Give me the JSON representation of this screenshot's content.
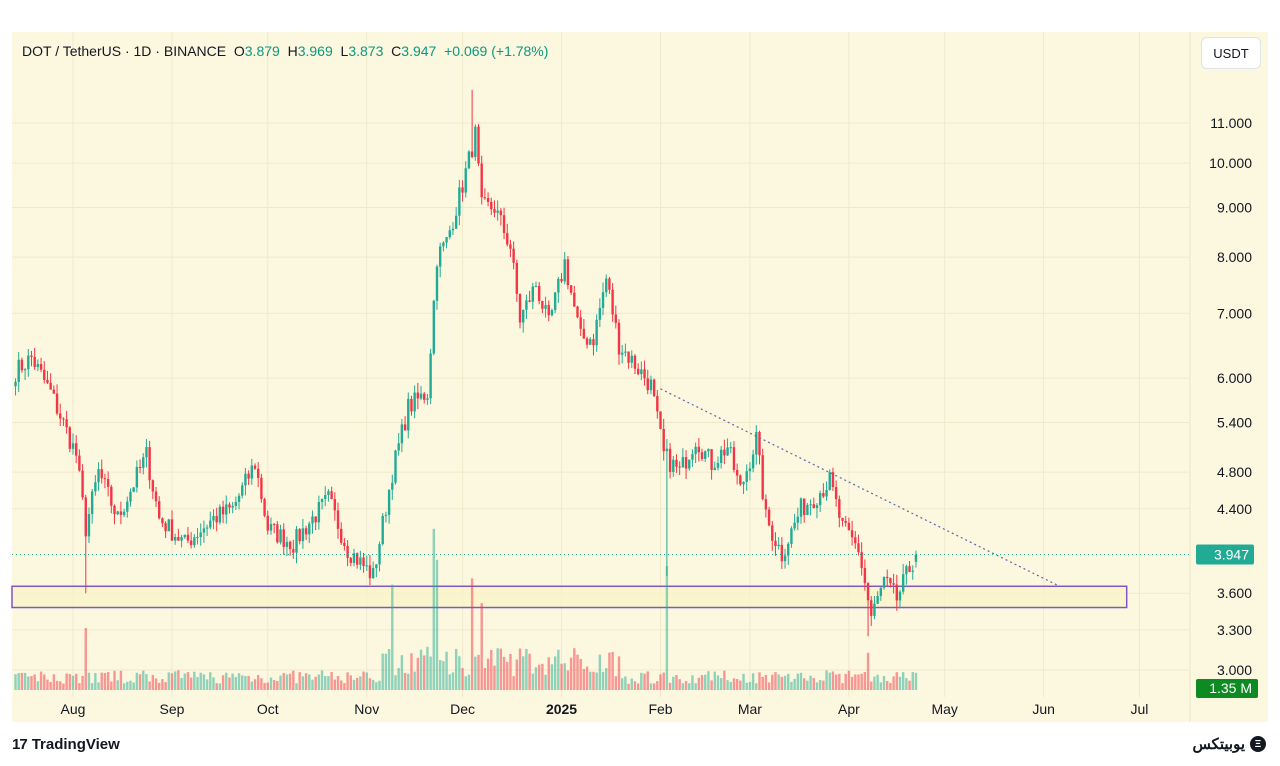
{
  "header": {
    "symbol": "DOT / TetherUS · 1D · BINANCE",
    "o_label": "O",
    "o": "3.879",
    "h_label": "H",
    "h": "3.969",
    "l_label": "L",
    "l": "3.873",
    "c_label": "C",
    "c": "3.947",
    "change": "+0.069 (+1.78%)"
  },
  "currency_button": "USDT",
  "footer": {
    "logo": "TradingView",
    "brand": "یوبیتکس"
  },
  "colors": {
    "up": "#22ab94",
    "down": "#f23645",
    "background": "#fcf7df",
    "zone": "#7e57c2",
    "price_tag": "#22ab94",
    "volume_tag": "#0d8a21"
  },
  "chart_data": {
    "type": "candlestick",
    "title": "DOT / TetherUS · 1D · BINANCE",
    "y_scale": "log",
    "ylim": [
      2.85,
      12.5
    ],
    "y_ticks": [
      "11.000",
      "10.000",
      "9.000",
      "8.000",
      "7.000",
      "6.000",
      "5.400",
      "4.800",
      "4.400",
      "3.600",
      "3.300",
      "3.000"
    ],
    "x_ticks": [
      {
        "date": "2024-08-01",
        "label": "Aug"
      },
      {
        "date": "2024-09-01",
        "label": "Sep"
      },
      {
        "date": "2024-10-01",
        "label": "Oct"
      },
      {
        "date": "2024-11-01",
        "label": "Nov"
      },
      {
        "date": "2024-12-01",
        "label": "Dec"
      },
      {
        "date": "2025-01-01",
        "label": "2025"
      },
      {
        "date": "2025-02-01",
        "label": "Feb"
      },
      {
        "date": "2025-03-01",
        "label": "Mar"
      },
      {
        "date": "2025-04-01",
        "label": "Apr"
      },
      {
        "date": "2025-05-01",
        "label": "May"
      },
      {
        "date": "2025-06-01",
        "label": "Jun"
      },
      {
        "date": "2025-07-01",
        "label": "Jul"
      }
    ],
    "close_keypoints": [
      [
        "2024-07-14",
        6.1
      ],
      [
        "2024-07-19",
        6.3
      ],
      [
        "2024-07-25",
        5.8
      ],
      [
        "2024-08-02",
        5.0
      ],
      [
        "2024-08-05",
        4.2
      ],
      [
        "2024-08-09",
        4.8
      ],
      [
        "2024-08-15",
        4.3
      ],
      [
        "2024-08-24",
        5.0
      ],
      [
        "2024-08-28",
        4.3
      ],
      [
        "2024-09-05",
        4.05
      ],
      [
        "2024-09-14",
        4.3
      ],
      [
        "2024-09-20",
        4.4
      ],
      [
        "2024-09-27",
        4.9
      ],
      [
        "2024-10-01",
        4.2
      ],
      [
        "2024-10-09",
        4.05
      ],
      [
        "2024-10-15",
        4.3
      ],
      [
        "2024-10-20",
        4.5
      ],
      [
        "2024-10-26",
        4.0
      ],
      [
        "2024-11-03",
        3.75
      ],
      [
        "2024-11-09",
        4.8
      ],
      [
        "2024-11-14",
        5.6
      ],
      [
        "2024-11-20",
        5.8
      ],
      [
        "2024-11-23",
        8.0
      ],
      [
        "2024-11-26",
        8.3
      ],
      [
        "2024-12-01",
        9.5
      ],
      [
        "2024-12-05",
        10.7
      ],
      [
        "2024-12-07",
        9.0
      ],
      [
        "2024-12-11",
        9.0
      ],
      [
        "2024-12-16",
        8.2
      ],
      [
        "2024-12-19",
        6.9
      ],
      [
        "2024-12-24",
        7.5
      ],
      [
        "2024-12-28",
        6.8
      ],
      [
        "2025-01-02",
        7.9
      ],
      [
        "2025-01-07",
        6.6
      ],
      [
        "2025-01-11",
        6.6
      ],
      [
        "2025-01-15",
        7.6
      ],
      [
        "2025-01-19",
        6.5
      ],
      [
        "2025-01-24",
        6.2
      ],
      [
        "2025-01-29",
        5.9
      ],
      [
        "2025-02-02",
        5.0
      ],
      [
        "2025-02-07",
        4.8
      ],
      [
        "2025-02-12",
        5.2
      ],
      [
        "2025-02-17",
        4.9
      ],
      [
        "2025-02-22",
        5.1
      ],
      [
        "2025-02-26",
        4.6
      ],
      [
        "2025-03-03",
        5.2
      ],
      [
        "2025-03-06",
        4.3
      ],
      [
        "2025-03-11",
        3.95
      ],
      [
        "2025-03-17",
        4.4
      ],
      [
        "2025-03-22",
        4.55
      ],
      [
        "2025-03-26",
        4.7
      ],
      [
        "2025-03-30",
        4.2
      ],
      [
        "2025-04-04",
        4.0
      ],
      [
        "2025-04-08",
        3.4
      ],
      [
        "2025-04-12",
        3.7
      ],
      [
        "2025-04-16",
        3.55
      ],
      [
        "2025-04-19",
        3.75
      ],
      [
        "2025-04-22",
        3.947
      ]
    ],
    "wick_extremes": [
      [
        "2024-08-05",
        3.6
      ],
      [
        "2024-12-04",
        11.9
      ],
      [
        "2025-02-03",
        3.75
      ],
      [
        "2025-04-07",
        3.25
      ]
    ],
    "volume_spikes_m": [
      [
        "2024-08-05",
        10
      ],
      [
        "2024-11-09",
        17
      ],
      [
        "2024-11-22",
        26
      ],
      [
        "2024-11-23",
        21
      ],
      [
        "2024-12-04",
        18
      ],
      [
        "2024-12-07",
        14
      ],
      [
        "2025-02-03",
        20
      ],
      [
        "2025-04-07",
        6
      ]
    ],
    "last_price": "3.947",
    "last_volume": "1.35 M",
    "support_zone": {
      "low": 3.48,
      "high": 3.66,
      "start": "2024-07-14",
      "end": "2025-06-27"
    },
    "trendline": {
      "start": [
        "2025-02-01",
        5.85
      ],
      "end": [
        "2025-06-06",
        3.66
      ]
    }
  }
}
